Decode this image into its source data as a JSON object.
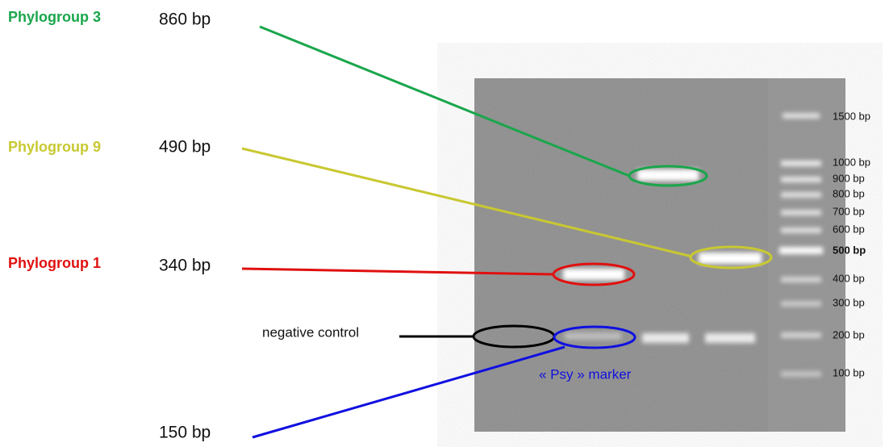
{
  "phylogroups": [
    {
      "name": "Phylogroup 3",
      "size": "860 bp"
    },
    {
      "name": "Phylogroup 9",
      "size": "490 bp"
    },
    {
      "name": "Phylogroup 1",
      "size": "340 bp"
    }
  ],
  "negative_control": "negative control",
  "psy_marker": {
    "label": "« Psy » marker",
    "size": "150 bp"
  },
  "ladder": [
    "1500 bp",
    "1000 bp",
    "900 bp",
    "800 bp",
    "700 bp",
    "600 bp",
    "500 bp",
    "400 bp",
    "300 bp",
    "200 bp",
    "100 bp"
  ]
}
